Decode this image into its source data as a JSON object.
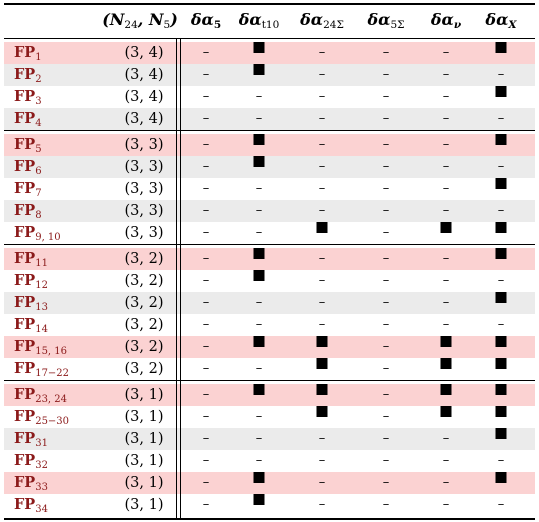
{
  "header": {
    "n_col": "(N24, N5)",
    "cols": [
      "δα5",
      "δαt10",
      "δα24Σ",
      "δα5Σ",
      "δαν",
      "δαX"
    ]
  },
  "groups": [
    [
      {
        "fp": "FP",
        "sub": "1",
        "n": "(3, 4)",
        "marks": [
          0,
          1,
          0,
          0,
          0,
          1
        ],
        "shade": "pink"
      },
      {
        "fp": "FP",
        "sub": "2",
        "n": "(3, 4)",
        "marks": [
          0,
          1,
          0,
          0,
          0,
          0
        ],
        "shade": "grey"
      },
      {
        "fp": "FP",
        "sub": "3",
        "n": "(3, 4)",
        "marks": [
          0,
          0,
          0,
          0,
          0,
          1
        ],
        "shade": "none"
      },
      {
        "fp": "FP",
        "sub": "4",
        "n": "(3, 4)",
        "marks": [
          0,
          0,
          0,
          0,
          0,
          0
        ],
        "shade": "grey"
      }
    ],
    [
      {
        "fp": "FP",
        "sub": "5",
        "n": "(3, 3)",
        "marks": [
          0,
          1,
          0,
          0,
          0,
          1
        ],
        "shade": "pink"
      },
      {
        "fp": "FP",
        "sub": "6",
        "n": "(3, 3)",
        "marks": [
          0,
          1,
          0,
          0,
          0,
          0
        ],
        "shade": "grey"
      },
      {
        "fp": "FP",
        "sub": "7",
        "n": "(3, 3)",
        "marks": [
          0,
          0,
          0,
          0,
          0,
          1
        ],
        "shade": "none"
      },
      {
        "fp": "FP",
        "sub": "8",
        "n": "(3, 3)",
        "marks": [
          0,
          0,
          0,
          0,
          0,
          0
        ],
        "shade": "grey"
      },
      {
        "fp": "FP",
        "sub": "9, 10",
        "n": "(3, 3)",
        "marks": [
          0,
          0,
          1,
          0,
          1,
          1
        ],
        "shade": "none"
      }
    ],
    [
      {
        "fp": "FP",
        "sub": "11",
        "n": "(3, 2)",
        "marks": [
          0,
          1,
          0,
          0,
          0,
          1
        ],
        "shade": "pink"
      },
      {
        "fp": "FP",
        "sub": "12",
        "n": "(3, 2)",
        "marks": [
          0,
          1,
          0,
          0,
          0,
          0
        ],
        "shade": "none"
      },
      {
        "fp": "FP",
        "sub": "13",
        "n": "(3, 2)",
        "marks": [
          0,
          0,
          0,
          0,
          0,
          1
        ],
        "shade": "grey"
      },
      {
        "fp": "FP",
        "sub": "14",
        "n": "(3, 2)",
        "marks": [
          0,
          0,
          0,
          0,
          0,
          0
        ],
        "shade": "none"
      },
      {
        "fp": "FP",
        "sub": "15, 16",
        "n": "(3, 2)",
        "marks": [
          0,
          1,
          1,
          0,
          1,
          1
        ],
        "shade": "pink"
      },
      {
        "fp": "FP",
        "sub": "17−22",
        "n": "(3, 2)",
        "marks": [
          0,
          0,
          1,
          0,
          1,
          1
        ],
        "shade": "none"
      }
    ],
    [
      {
        "fp": "FP",
        "sub": "23, 24",
        "n": "(3, 1)",
        "marks": [
          0,
          1,
          1,
          0,
          1,
          1
        ],
        "shade": "pink"
      },
      {
        "fp": "FP",
        "sub": "25−30",
        "n": "(3, 1)",
        "marks": [
          0,
          0,
          1,
          0,
          1,
          1
        ],
        "shade": "none"
      },
      {
        "fp": "FP",
        "sub": "31",
        "n": "(3, 1)",
        "marks": [
          0,
          0,
          0,
          0,
          0,
          1
        ],
        "shade": "grey"
      },
      {
        "fp": "FP",
        "sub": "32",
        "n": "(3, 1)",
        "marks": [
          0,
          0,
          0,
          0,
          0,
          0
        ],
        "shade": "none"
      },
      {
        "fp": "FP",
        "sub": "33",
        "n": "(3, 1)",
        "marks": [
          0,
          1,
          0,
          0,
          0,
          1
        ],
        "shade": "pink"
      },
      {
        "fp": "FP",
        "sub": "34",
        "n": "(3, 1)",
        "marks": [
          0,
          1,
          0,
          0,
          0,
          0
        ],
        "shade": "none"
      }
    ]
  ],
  "dash": "–",
  "colors": {
    "pink": "#fbd2d2",
    "grey": "#ebebeb",
    "fp_text": "#8b1a1a"
  }
}
